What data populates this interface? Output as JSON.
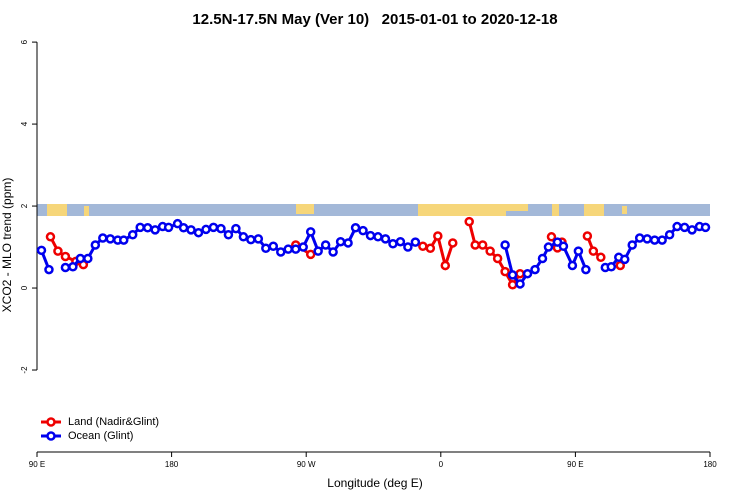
{
  "chart_data": {
    "type": "line",
    "title": "12.5N-17.5N May (Ver 10)   2015-01-01 to 2020-12-18",
    "xlabel": "Longitude (deg E)",
    "ylabel": "XCO2 - MLO trend (ppm)",
    "xlim": [
      90,
      540
    ],
    "ylim": [
      -4,
      6.1
    ],
    "xticks": [
      {
        "value": 90,
        "label": "90 E"
      },
      180,
      {
        "value": 270,
        "label": "90 W"
      },
      {
        "value": 360,
        "label": "0"
      },
      {
        "value": 450,
        "label": "90 E"
      },
      {
        "value": 540,
        "label": "180"
      }
    ],
    "yticks": [
      -2,
      0,
      2,
      4,
      6
    ],
    "legend": "bottom-left",
    "series": [
      {
        "name": "Land (Nadir&Glint)",
        "color": "#ee0000",
        "x": [
          99,
          104,
          109,
          116,
          121,
          190,
          263,
          273,
          310,
          348,
          353,
          358,
          363,
          368,
          374,
          379,
          383,
          388,
          393,
          398,
          403,
          408,
          413,
          425,
          434,
          438,
          441,
          450,
          458,
          462,
          467,
          473,
          480
        ],
        "values": [
          1.25,
          0.9,
          0.77,
          0.65,
          0.57,
          null,
          1.05,
          0.82,
          null,
          1.02,
          0.97,
          1.27,
          0.55,
          1.1,
          null,
          1.62,
          1.05,
          1.05,
          0.9,
          0.72,
          0.4,
          0.08,
          0.35,
          null,
          1.25,
          0.98,
          1.12,
          null,
          1.27,
          0.9,
          0.75,
          null,
          0.55
        ]
      },
      {
        "name": "Ocean (Glint)",
        "color": "#0000ee",
        "x": [
          93,
          98,
          103,
          109,
          114,
          119,
          124,
          129,
          134,
          139,
          144,
          148,
          154,
          159,
          164,
          169,
          174,
          178,
          184,
          188,
          193,
          198,
          203,
          208,
          213,
          218,
          223,
          228,
          233,
          238,
          243,
          248,
          253,
          258,
          263,
          268,
          273,
          278,
          283,
          288,
          293,
          298,
          303,
          308,
          313,
          318,
          323,
          328,
          333,
          338,
          343,
          375,
          403,
          408,
          413,
          418,
          423,
          428,
          432,
          438,
          442,
          448,
          452,
          457,
          463,
          470,
          474,
          479,
          483,
          488,
          493,
          498,
          503,
          508,
          513,
          518,
          523,
          528,
          533,
          537
        ],
        "values": [
          0.92,
          0.45,
          null,
          0.5,
          0.52,
          0.72,
          0.72,
          1.05,
          1.22,
          1.2,
          1.17,
          1.17,
          1.3,
          1.48,
          1.47,
          1.42,
          1.5,
          1.48,
          1.57,
          1.47,
          1.42,
          1.35,
          1.43,
          1.48,
          1.45,
          1.3,
          1.45,
          1.25,
          1.18,
          1.2,
          0.97,
          1.02,
          0.88,
          0.95,
          0.95,
          1.0,
          1.37,
          0.9,
          1.05,
          0.88,
          1.13,
          1.1,
          1.47,
          1.4,
          1.28,
          1.25,
          1.2,
          1.08,
          1.13,
          1.0,
          1.12,
          null,
          1.05,
          0.32,
          0.1,
          0.35,
          0.45,
          0.72,
          1.0,
          1.12,
          1.02,
          0.55,
          0.9,
          0.45,
          null,
          0.5,
          0.52,
          0.75,
          0.7,
          1.05,
          1.22,
          1.2,
          1.17,
          1.17,
          1.3,
          1.5,
          1.48,
          1.42,
          1.5,
          1.48
        ]
      }
    ]
  }
}
